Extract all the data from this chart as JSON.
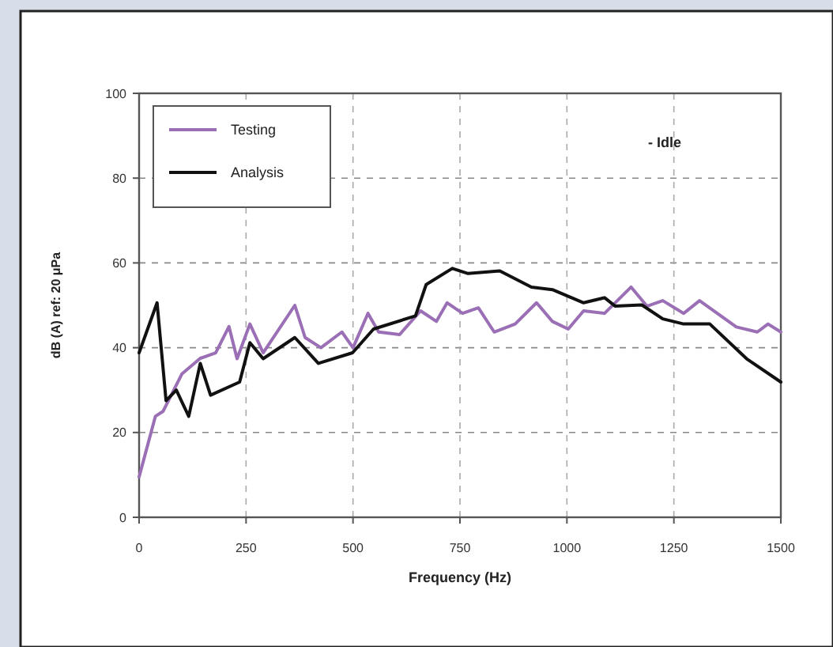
{
  "chart_data": {
    "type": "line",
    "xlabel": "Frequency (Hz)",
    "ylabel": "dB (A) ref: 20 μPa",
    "annotations": [
      "- Idle"
    ],
    "xlim": [
      0,
      1500
    ],
    "xticks": [
      0,
      250,
      500,
      750,
      1000,
      1250,
      1500
    ],
    "ylim": [
      0,
      100
    ],
    "yticks": [
      0,
      20,
      40,
      60,
      80,
      100
    ],
    "grid": true,
    "legend": "top left",
    "line_style": "solid",
    "series": [
      {
        "name": "Testing",
        "color": "#9b6fb5",
        "x": [
          0,
          38,
          56,
          100,
          143,
          179,
          210,
          229,
          259,
          290,
          364,
          388,
          425,
          474,
          500,
          535,
          560,
          609,
          658,
          695,
          720,
          756,
          793,
          830,
          879,
          929,
          966,
          1003,
          1039,
          1088,
          1150,
          1187,
          1224,
          1273,
          1310,
          1396,
          1445,
          1470,
          1500
        ],
        "values": [
          9.5,
          23.8,
          25,
          33.8,
          37.5,
          38.8,
          45,
          37.4,
          45.6,
          38.8,
          50,
          42.4,
          40,
          43.7,
          40,
          48.1,
          43.7,
          43.1,
          48.7,
          46.2,
          50.6,
          48.1,
          49.4,
          43.7,
          45.6,
          50.6,
          46.2,
          44.4,
          48.7,
          48.1,
          54.3,
          49.8,
          51.1,
          48.1,
          51.1,
          44.9,
          43.7,
          45.6,
          43.7
        ]
      },
      {
        "name": "Analysis",
        "color": "#111111",
        "x": [
          0,
          42,
          63,
          87,
          116,
          143,
          167,
          235,
          259,
          290,
          364,
          419,
          499,
          548,
          646,
          671,
          732,
          769,
          843,
          917,
          966,
          1039,
          1088,
          1113,
          1175,
          1224,
          1273,
          1334,
          1420,
          1500
        ],
        "values": [
          38.8,
          50.6,
          27.5,
          30,
          23.8,
          36.3,
          28.8,
          31.9,
          41.2,
          37.4,
          42.4,
          36.3,
          38.8,
          44.4,
          47.5,
          54.9,
          58.7,
          57.5,
          58.1,
          54.3,
          53.7,
          50.6,
          51.8,
          49.8,
          50.1,
          46.8,
          45.6,
          45.6,
          37.4,
          31.9
        ]
      }
    ]
  }
}
